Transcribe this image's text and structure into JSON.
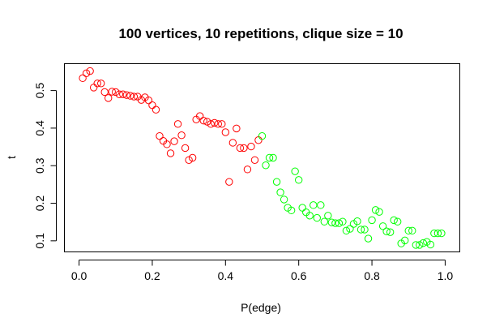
{
  "chart_data": {
    "type": "scatter",
    "title": "100 vertices, 10 repetitions, clique size = 10",
    "xlabel": "P(edge)",
    "ylabel": "t",
    "xlim": [
      0,
      1
    ],
    "ylim": [
      0.1,
      0.55
    ],
    "x_ticks": [
      0,
      0.2,
      0.4,
      0.6,
      0.8,
      1
    ],
    "x_tick_labels": [
      "0.0",
      "0.2",
      "0.4",
      "0.6",
      "0.8",
      "1.0"
    ],
    "y_ticks": [
      0.1,
      0.2,
      0.3,
      0.4,
      0.5
    ],
    "y_tick_labels": [
      "0.1",
      "0.2",
      "0.3",
      "0.4",
      "0.5"
    ],
    "grid": false,
    "marker": "open-circle",
    "series": [
      {
        "color": "#ff0000",
        "points": [
          [
            0.01,
            0.533
          ],
          [
            0.02,
            0.546
          ],
          [
            0.03,
            0.552
          ],
          [
            0.04,
            0.508
          ],
          [
            0.05,
            0.519
          ],
          [
            0.06,
            0.519
          ],
          [
            0.07,
            0.496
          ],
          [
            0.08,
            0.48
          ],
          [
            0.09,
            0.497
          ],
          [
            0.1,
            0.496
          ],
          [
            0.11,
            0.49
          ],
          [
            0.12,
            0.49
          ],
          [
            0.13,
            0.488
          ],
          [
            0.14,
            0.486
          ],
          [
            0.15,
            0.484
          ],
          [
            0.16,
            0.484
          ],
          [
            0.17,
            0.475
          ],
          [
            0.18,
            0.482
          ],
          [
            0.19,
            0.474
          ],
          [
            0.2,
            0.461
          ],
          [
            0.21,
            0.449
          ],
          [
            0.22,
            0.379
          ],
          [
            0.23,
            0.366
          ],
          [
            0.24,
            0.357
          ],
          [
            0.25,
            0.333
          ],
          [
            0.26,
            0.365
          ],
          [
            0.27,
            0.411
          ],
          [
            0.28,
            0.381
          ],
          [
            0.29,
            0.347
          ],
          [
            0.3,
            0.315
          ],
          [
            0.31,
            0.321
          ],
          [
            0.32,
            0.423
          ],
          [
            0.33,
            0.432
          ],
          [
            0.34,
            0.42
          ],
          [
            0.35,
            0.417
          ],
          [
            0.36,
            0.411
          ],
          [
            0.37,
            0.414
          ],
          [
            0.38,
            0.411
          ],
          [
            0.39,
            0.411
          ],
          [
            0.4,
            0.389
          ],
          [
            0.41,
            0.257
          ],
          [
            0.42,
            0.361
          ],
          [
            0.43,
            0.399
          ],
          [
            0.44,
            0.347
          ],
          [
            0.45,
            0.347
          ],
          [
            0.46,
            0.29
          ],
          [
            0.47,
            0.351
          ],
          [
            0.48,
            0.315
          ],
          [
            0.49,
            0.368
          ]
        ]
      },
      {
        "color": "#00ff00",
        "points": [
          [
            0.5,
            0.379
          ],
          [
            0.51,
            0.301
          ],
          [
            0.52,
            0.321
          ],
          [
            0.53,
            0.321
          ],
          [
            0.54,
            0.257
          ],
          [
            0.55,
            0.229
          ],
          [
            0.56,
            0.21
          ],
          [
            0.57,
            0.188
          ],
          [
            0.58,
            0.181
          ],
          [
            0.59,
            0.285
          ],
          [
            0.6,
            0.262
          ],
          [
            0.61,
            0.188
          ],
          [
            0.62,
            0.176
          ],
          [
            0.63,
            0.167
          ],
          [
            0.64,
            0.195
          ],
          [
            0.65,
            0.161
          ],
          [
            0.66,
            0.195
          ],
          [
            0.67,
            0.151
          ],
          [
            0.68,
            0.167
          ],
          [
            0.69,
            0.149
          ],
          [
            0.7,
            0.147
          ],
          [
            0.71,
            0.147
          ],
          [
            0.72,
            0.151
          ],
          [
            0.73,
            0.127
          ],
          [
            0.74,
            0.132
          ],
          [
            0.75,
            0.145
          ],
          [
            0.76,
            0.152
          ],
          [
            0.77,
            0.13
          ],
          [
            0.78,
            0.13
          ],
          [
            0.79,
            0.106
          ],
          [
            0.8,
            0.155
          ],
          [
            0.81,
            0.182
          ],
          [
            0.82,
            0.177
          ],
          [
            0.83,
            0.139
          ],
          [
            0.84,
            0.125
          ],
          [
            0.85,
            0.123
          ],
          [
            0.86,
            0.155
          ],
          [
            0.87,
            0.151
          ],
          [
            0.88,
            0.093
          ],
          [
            0.89,
            0.101
          ],
          [
            0.9,
            0.127
          ],
          [
            0.91,
            0.127
          ],
          [
            0.92,
            0.089
          ],
          [
            0.93,
            0.089
          ],
          [
            0.94,
            0.094
          ],
          [
            0.95,
            0.097
          ],
          [
            0.96,
            0.09
          ],
          [
            0.97,
            0.12
          ],
          [
            0.98,
            0.12
          ],
          [
            0.99,
            0.12
          ]
        ]
      }
    ]
  }
}
